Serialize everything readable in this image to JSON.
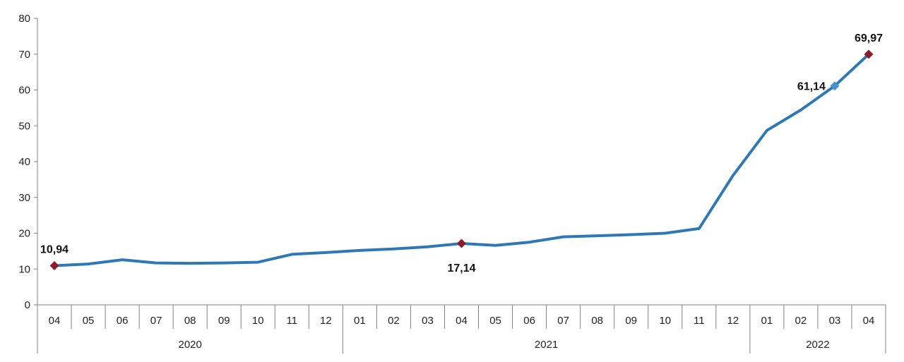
{
  "chart_data": {
    "type": "line",
    "title": "",
    "xlabel": "",
    "ylabel": "",
    "ylim": [
      0,
      80
    ],
    "yticks": [
      "0",
      "10",
      "20",
      "30",
      "40",
      "50",
      "60",
      "70",
      "80"
    ],
    "grid": false,
    "legend": "none",
    "categories": [
      "04",
      "05",
      "06",
      "07",
      "08",
      "09",
      "10",
      "11",
      "12",
      "01",
      "02",
      "03",
      "04",
      "05",
      "06",
      "07",
      "08",
      "09",
      "10",
      "11",
      "12",
      "01",
      "02",
      "03",
      "04"
    ],
    "years": [
      {
        "label": "2020",
        "start": 0,
        "end": 8
      },
      {
        "label": "2021",
        "start": 9,
        "end": 20
      },
      {
        "label": "2022",
        "start": 21,
        "end": 24
      }
    ],
    "series": [
      {
        "values": [
          10.94,
          11.4,
          12.6,
          11.7,
          11.6,
          11.7,
          11.9,
          14.1,
          14.6,
          15.2,
          15.6,
          16.2,
          17.14,
          16.6,
          17.5,
          19.0,
          19.3,
          19.6,
          20.0,
          21.3,
          36.1,
          48.7,
          54.4,
          61.14,
          69.97
        ]
      }
    ],
    "line_color": "#2e79b5",
    "marker_color_highlight": "#8b1c2c",
    "marker_color_series": "#4a8fd1",
    "annotations": [
      {
        "index": 0,
        "label": "10,94",
        "marker": "highlight",
        "position": "above"
      },
      {
        "index": 12,
        "label": "17,14",
        "marker": "highlight",
        "position": "below"
      },
      {
        "index": 23,
        "label": "61,14",
        "marker": "series",
        "position": "left"
      },
      {
        "index": 24,
        "label": "69,97",
        "marker": "highlight",
        "position": "above"
      }
    ]
  }
}
